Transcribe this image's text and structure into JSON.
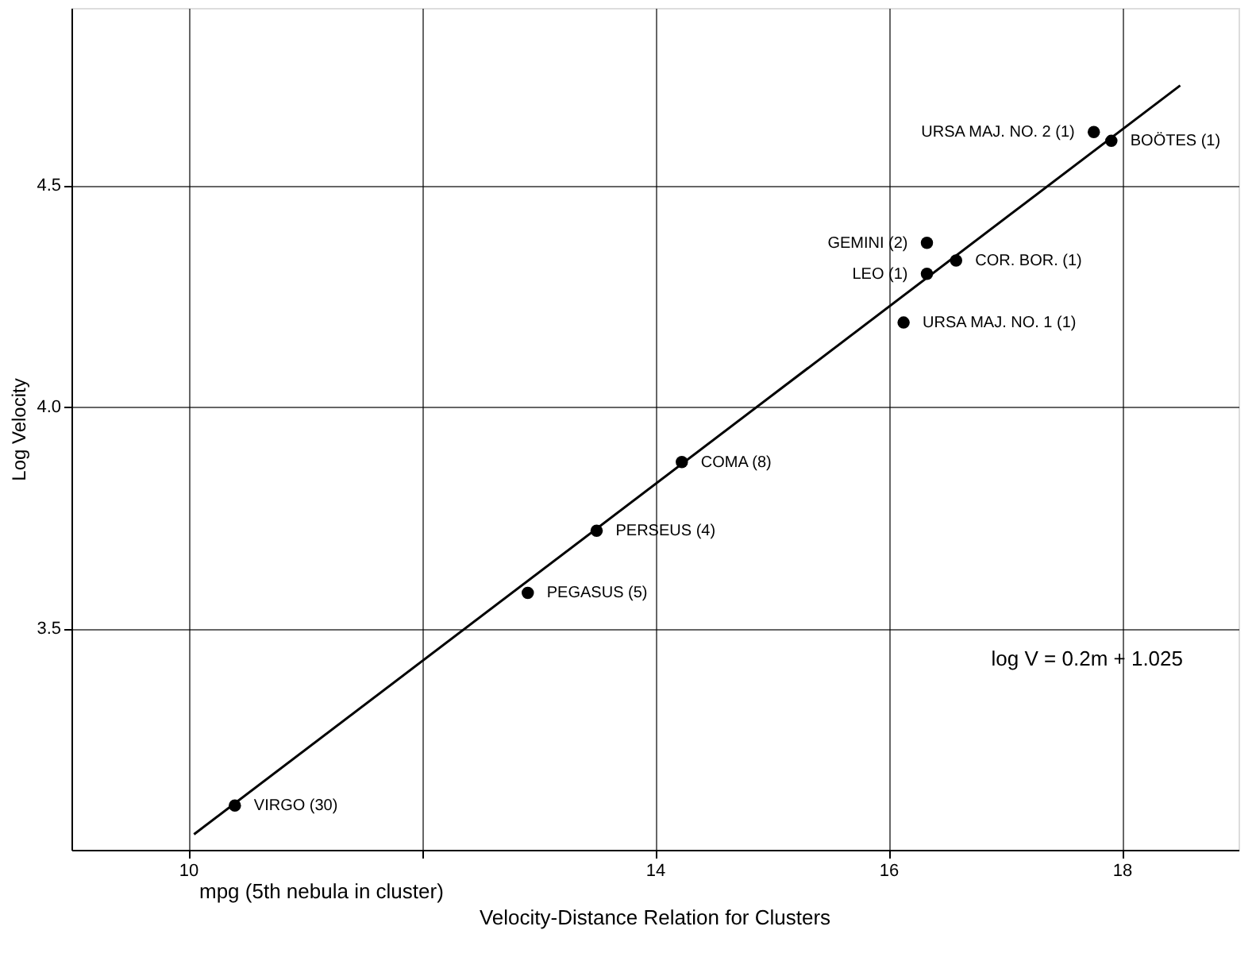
{
  "chart_data": [
    {
      "type": "scatter",
      "title": "Velocity-Distance Relation for Clusters",
      "xlabel": "mpg (5th nebula in cluster)",
      "ylabel": "Log Velocity",
      "xlim": [
        9,
        19
      ],
      "ylim": [
        3.0,
        4.9
      ],
      "xticks": [
        10,
        {
          "value": 12,
          "label": null
        },
        14,
        16,
        18
      ],
      "yticks": [
        3.5,
        {
          "value": 4.0,
          "label": "4.0"
        },
        4.5
      ],
      "grid": true,
      "series": [
        {
          "color": "#000000",
          "marker": "circle",
          "x": [
            10.4,
            12.91,
            13.5,
            14.23,
            16.13,
            16.33,
            16.33,
            16.58,
            17.91,
            17.76
          ],
          "values": [
            3.1,
            3.58,
            3.72,
            3.875,
            4.19,
            4.3,
            4.37,
            4.33,
            4.6,
            4.62
          ]
        },
        {
          "type": "line",
          "color": "#000000",
          "line_style": "solid",
          "x": [
            10.05,
            18.5
          ],
          "values": [
            3.035,
            4.725
          ]
        }
      ],
      "annotations": [
        {
          "text": "URSA MAJ. NO. 2 (1)",
          "x": 17.76,
          "y": 4.62
        },
        {
          "text": "BOÖTES (1)",
          "x": 17.91,
          "y": 4.6
        },
        {
          "text": "GEMINI (2)",
          "x": 16.33,
          "y": 4.37
        },
        {
          "text": "COR. BOR. (1)",
          "x": 16.58,
          "y": 4.33
        },
        {
          "text": "LEO (1)",
          "x": 16.33,
          "y": 4.3
        },
        {
          "text": "URSA MAJ. NO. 1 (1)",
          "x": 16.13,
          "y": 4.19
        },
        {
          "text": "COMA (8)",
          "x": 14.23,
          "y": 3.875
        },
        {
          "text": "PERSEUS (4)",
          "x": 13.5,
          "y": 3.72
        },
        {
          "text": "PEGASUS (5)",
          "x": 12.91,
          "y": 3.58
        },
        {
          "text": "VIRGO (30)",
          "x": 10.4,
          "y": 3.1
        },
        "log V = 0.2m + 1.025"
      ]
    }
  ]
}
